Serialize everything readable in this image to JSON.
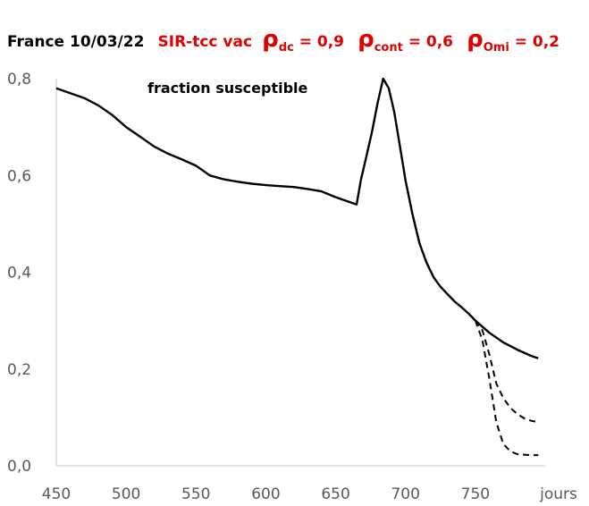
{
  "title": {
    "prefix": "France 10/03/22",
    "model": "SIR-tcc vac",
    "rho_symbol": "ρ",
    "params": [
      {
        "sub": "dc",
        "value": " = 0,9"
      },
      {
        "sub": "cont",
        "value": " = 0,6"
      },
      {
        "sub": "Omi",
        "value": " = 0,2"
      }
    ]
  },
  "colors": {
    "title_prefix": "#000000",
    "params": "#e00000",
    "axis": "#d9d9d9",
    "tick_text": "#595959",
    "line": "#000000"
  },
  "chart_data": {
    "type": "line",
    "xlabel": "jours",
    "ylabel": "",
    "xlim": [
      450,
      800
    ],
    "ylim": [
      0,
      0.8
    ],
    "x_ticks": [
      450,
      500,
      550,
      600,
      650,
      700,
      750
    ],
    "x_tick_labels": [
      "450",
      "500",
      "550",
      "600",
      "650",
      "700",
      "750"
    ],
    "y_ticks": [
      0,
      0.2,
      0.4,
      0.6,
      0.8
    ],
    "y_tick_labels": [
      "0,0",
      "0,2",
      "0,4",
      "0,6",
      "0,8"
    ],
    "grid": false,
    "annotation": "fraction susceptible",
    "series": [
      {
        "style": "solid",
        "x": [
          450,
          460,
          470,
          480,
          490,
          500,
          510,
          520,
          530,
          540,
          550,
          560,
          570,
          580,
          590,
          600,
          610,
          620,
          630,
          640,
          650,
          660,
          665,
          668,
          672,
          676,
          680,
          684,
          688,
          692,
          696,
          700,
          705,
          710,
          715,
          720,
          725,
          730,
          735,
          740,
          745,
          750,
          760,
          770,
          780,
          790,
          795
        ],
        "y": [
          0.78,
          0.77,
          0.76,
          0.745,
          0.725,
          0.7,
          0.68,
          0.66,
          0.645,
          0.633,
          0.62,
          0.6,
          0.592,
          0.587,
          0.583,
          0.58,
          0.578,
          0.576,
          0.572,
          0.567,
          0.555,
          0.545,
          0.54,
          0.59,
          0.64,
          0.69,
          0.75,
          0.8,
          0.78,
          0.73,
          0.66,
          0.59,
          0.52,
          0.46,
          0.42,
          0.39,
          0.37,
          0.355,
          0.34,
          0.328,
          0.315,
          0.3,
          0.275,
          0.255,
          0.24,
          0.227,
          0.222
        ]
      },
      {
        "style": "dashed",
        "x": [
          750,
          755,
          760,
          765,
          770,
          775,
          780,
          785,
          790,
          795
        ],
        "y": [
          0.3,
          0.28,
          0.23,
          0.17,
          0.14,
          0.12,
          0.107,
          0.098,
          0.093,
          0.09
        ]
      },
      {
        "style": "dashed",
        "x": [
          750,
          755,
          760,
          765,
          770,
          775,
          780,
          785,
          790,
          795
        ],
        "y": [
          0.3,
          0.26,
          0.18,
          0.09,
          0.045,
          0.03,
          0.024,
          0.023,
          0.022,
          0.022
        ]
      }
    ]
  }
}
